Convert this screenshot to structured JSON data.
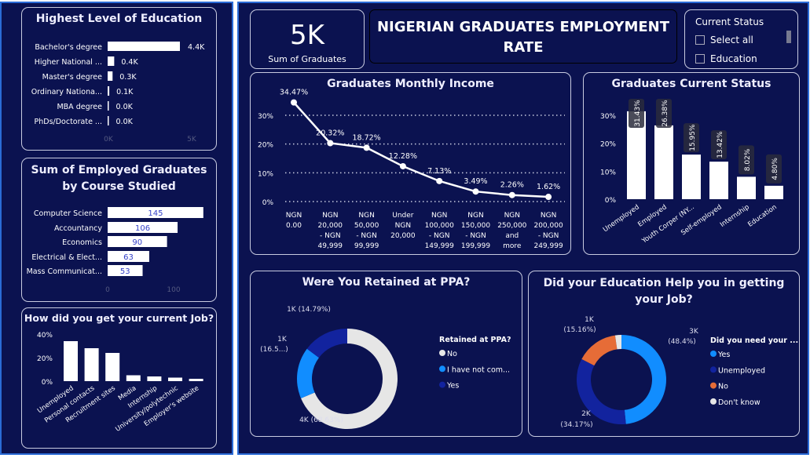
{
  "header": {
    "title": "NIGERIAN GRADUATES EMPLOYMENT RATE",
    "kpi_value": "5K",
    "kpi_label": "Sum of Graduates"
  },
  "slicer": {
    "title": "Current Status",
    "items": [
      "Select all",
      "Education"
    ]
  },
  "colors": {
    "background": "#0b1250",
    "bar": "#ffffff",
    "light_blue": "#118dff",
    "dark_blue": "#12239e",
    "orange": "#e66c37",
    "gray": "#e6e6e6"
  },
  "chart_data": [
    {
      "id": "education",
      "type": "bar",
      "orientation": "horizontal",
      "title": "Highest Level of Education",
      "categories": [
        "Bachelor's degree",
        "Higher National ...",
        "Master's degree",
        "Ordinary Nationa...",
        "MBA degree",
        "PhDs/Doctorate ..."
      ],
      "values": [
        4.4,
        0.4,
        0.3,
        0.1,
        0.0,
        0.0
      ],
      "data_labels": [
        "4.4K",
        "0.4K",
        "0.3K",
        "0.1K",
        "0.0K",
        "0.0K"
      ],
      "xlim": [
        0,
        5
      ],
      "xticks": [
        "0K",
        "5K"
      ]
    },
    {
      "id": "course",
      "type": "bar",
      "orientation": "horizontal",
      "title": "Sum of Employed Graduates by Course Studied",
      "categories": [
        "Computer Science",
        "Accountancy",
        "Economics",
        "Electrical & Elect...",
        "Mass Communicat..."
      ],
      "values": [
        145,
        106,
        90,
        63,
        53
      ],
      "xlim": [
        0,
        150
      ],
      "xticks": [
        "0",
        "100"
      ]
    },
    {
      "id": "job",
      "type": "bar",
      "title": "How did you get your current Job?",
      "categories": [
        "Unemployed",
        "Personal contacts",
        "Recruitment sites",
        "Media",
        "Internship",
        "University/polytechnic",
        "Employer's website"
      ],
      "values": [
        34,
        28,
        24,
        5,
        4,
        3,
        2
      ],
      "ylim": [
        0,
        40
      ],
      "yticks": [
        "0%",
        "20%",
        "40%"
      ]
    },
    {
      "id": "income",
      "type": "line",
      "title": "Graduates Monthly Income",
      "categories": [
        [
          "NGN",
          "0.00"
        ],
        [
          "NGN",
          "20,000",
          "- NGN",
          "49,999"
        ],
        [
          "NGN",
          "50,000",
          "- NGN",
          "99,999"
        ],
        [
          "Under",
          "NGN",
          "20,000"
        ],
        [
          "NGN",
          "100,000",
          "- NGN",
          "149,999"
        ],
        [
          "NGN",
          "150,000",
          "- NGN",
          "199,999"
        ],
        [
          "NGN",
          "250,000",
          "and",
          "more"
        ],
        [
          "NGN",
          "200,000",
          "- NGN",
          "249,999"
        ]
      ],
      "values": [
        34.47,
        20.32,
        18.72,
        12.28,
        7.13,
        3.49,
        2.26,
        1.62
      ],
      "data_labels": [
        "34.47%",
        "20.32%",
        "18.72%",
        "12.28%",
        "7.13%",
        "3.49%",
        "2.26%",
        "1.62%"
      ],
      "ylim": [
        0,
        30
      ],
      "yticks": [
        "0%",
        "10%",
        "20%",
        "30%"
      ],
      "grid": true
    },
    {
      "id": "status",
      "type": "bar",
      "title": "Graduates Current Status",
      "categories": [
        "Unemployed",
        "Employed",
        "Youth Corper (NY...",
        "Self-employed",
        "Internship",
        "Education"
      ],
      "values": [
        31.43,
        26.38,
        15.95,
        13.42,
        8.02,
        4.8
      ],
      "data_labels": [
        "31.43%",
        "26.38%",
        "15.95%",
        "13.42%",
        "8.02%",
        "4.80%"
      ],
      "ylim": [
        0,
        30
      ],
      "yticks": [
        "0%",
        "10%",
        "20%",
        "30%"
      ]
    },
    {
      "id": "ppa",
      "type": "pie",
      "donut": true,
      "title": "Were You Retained at PPA?",
      "legend_title": "Retained at PPA?",
      "legend": "right",
      "slices": [
        {
          "name": "No",
          "value": 68.63,
          "color": "#e6e6e6",
          "label": "4K (68.63%)"
        },
        {
          "name": "I have not com...",
          "value": 16.58,
          "color": "#118dff",
          "label": "1K (16.5...)"
        },
        {
          "name": "Yes",
          "value": 14.79,
          "color": "#12239e",
          "label": "1K (14.79%)"
        }
      ]
    },
    {
      "id": "edu_help",
      "type": "pie",
      "donut": true,
      "title": "Did your Education Help you in getting your Job?",
      "legend_title": "Did you need your ...",
      "legend": "right",
      "slices": [
        {
          "name": "Yes",
          "value": 48.4,
          "color": "#118dff",
          "label": "3K (48.4%)"
        },
        {
          "name": "Unemployed",
          "value": 34.17,
          "color": "#12239e",
          "label": "2K (34.17%)"
        },
        {
          "name": "No",
          "value": 15.16,
          "color": "#e66c37",
          "label": "1K (15.16%)"
        },
        {
          "name": "Don't know",
          "value": 2.27,
          "color": "#e6e6e6"
        }
      ]
    }
  ]
}
